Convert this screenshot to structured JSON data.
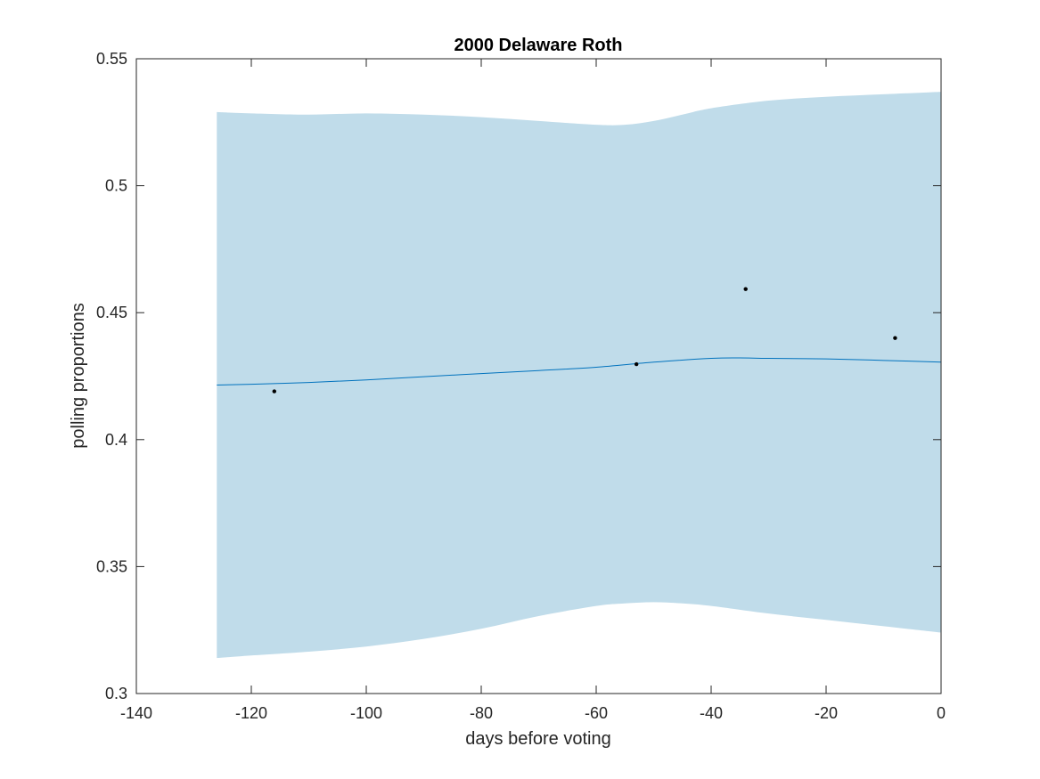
{
  "chart_data": {
    "type": "line",
    "title": "2000 Delaware Roth",
    "xlabel": "days before voting",
    "ylabel": "polling proportions",
    "xlim": [
      -140,
      0
    ],
    "ylim": [
      0.3,
      0.55
    ],
    "xticks": [
      -140,
      -120,
      -100,
      -80,
      -60,
      -40,
      -20,
      0
    ],
    "xtick_labels": [
      "-140",
      "-120",
      "-100",
      "-80",
      "-60",
      "-40",
      "-20",
      "0"
    ],
    "yticks": [
      0.3,
      0.35,
      0.4,
      0.45,
      0.5,
      0.55
    ],
    "ytick_labels": [
      "0.3",
      "0.35",
      "0.4",
      "0.45",
      "0.5",
      "0.55"
    ],
    "grid": false,
    "colors": {
      "band": "#c0dcea",
      "line": "#0072bd",
      "points": "#000000",
      "axes": "#262626"
    },
    "band": {
      "x": [
        -126,
        -120,
        -110,
        -100,
        -90,
        -80,
        -70,
        -60,
        -55,
        -50,
        -45,
        -40,
        -30,
        -20,
        -10,
        0
      ],
      "upper": [
        0.529,
        0.5285,
        0.528,
        0.5285,
        0.528,
        0.527,
        0.5255,
        0.524,
        0.524,
        0.5255,
        0.528,
        0.5305,
        0.5335,
        0.535,
        0.536,
        0.537
      ],
      "lower": [
        0.314,
        0.315,
        0.3165,
        0.3185,
        0.3215,
        0.3255,
        0.3305,
        0.3345,
        0.3355,
        0.336,
        0.3355,
        0.3345,
        0.3315,
        0.329,
        0.3265,
        0.324
      ]
    },
    "series": [
      {
        "type": "line",
        "x": [
          -126,
          -120,
          -110,
          -100,
          -90,
          -80,
          -70,
          -60,
          -50,
          -40,
          -35,
          -30,
          -20,
          -10,
          0
        ],
        "values": [
          0.4215,
          0.4218,
          0.4225,
          0.4235,
          0.4248,
          0.426,
          0.4272,
          0.4285,
          0.4305,
          0.432,
          0.4322,
          0.432,
          0.4318,
          0.4312,
          0.4305
        ]
      },
      {
        "type": "scatter",
        "x": [
          -116,
          -53,
          -34,
          -8
        ],
        "values": [
          0.419,
          0.4297,
          0.4593,
          0.44
        ]
      }
    ]
  }
}
